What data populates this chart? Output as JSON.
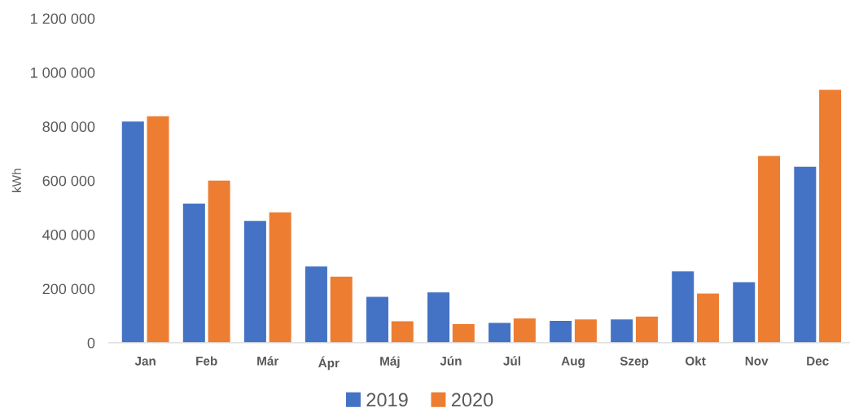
{
  "chart_data": {
    "type": "bar",
    "ylabel": "kWh",
    "categories": [
      "Jan",
      "Feb",
      "Már",
      "Ápr",
      "Máj",
      "Jún",
      "Júl",
      "Aug",
      "Szep",
      "Okt",
      "Nov",
      "Dec"
    ],
    "series": [
      {
        "name": "2019",
        "color": "#4472c4",
        "values": [
          818000,
          515000,
          451000,
          282000,
          170000,
          186000,
          73000,
          81000,
          86000,
          264000,
          224000,
          651000
        ]
      },
      {
        "name": "2020",
        "color": "#ed7d31",
        "values": [
          838000,
          600000,
          482000,
          244000,
          79000,
          69000,
          90000,
          86000,
          97000,
          182000,
          691000,
          936000
        ]
      }
    ],
    "ylim": [
      0,
      1200000
    ],
    "yticks": [
      {
        "value": 0,
        "label": "0"
      },
      {
        "value": 200000,
        "label": "200 000"
      },
      {
        "value": 400000,
        "label": "400 000"
      },
      {
        "value": 600000,
        "label": "600 000"
      },
      {
        "value": 800000,
        "label": "800 000"
      },
      {
        "value": 1000000,
        "label": "1 000 000"
      },
      {
        "value": 1200000,
        "label": "1 200 000"
      }
    ],
    "grid": false,
    "legend": "bottom"
  }
}
